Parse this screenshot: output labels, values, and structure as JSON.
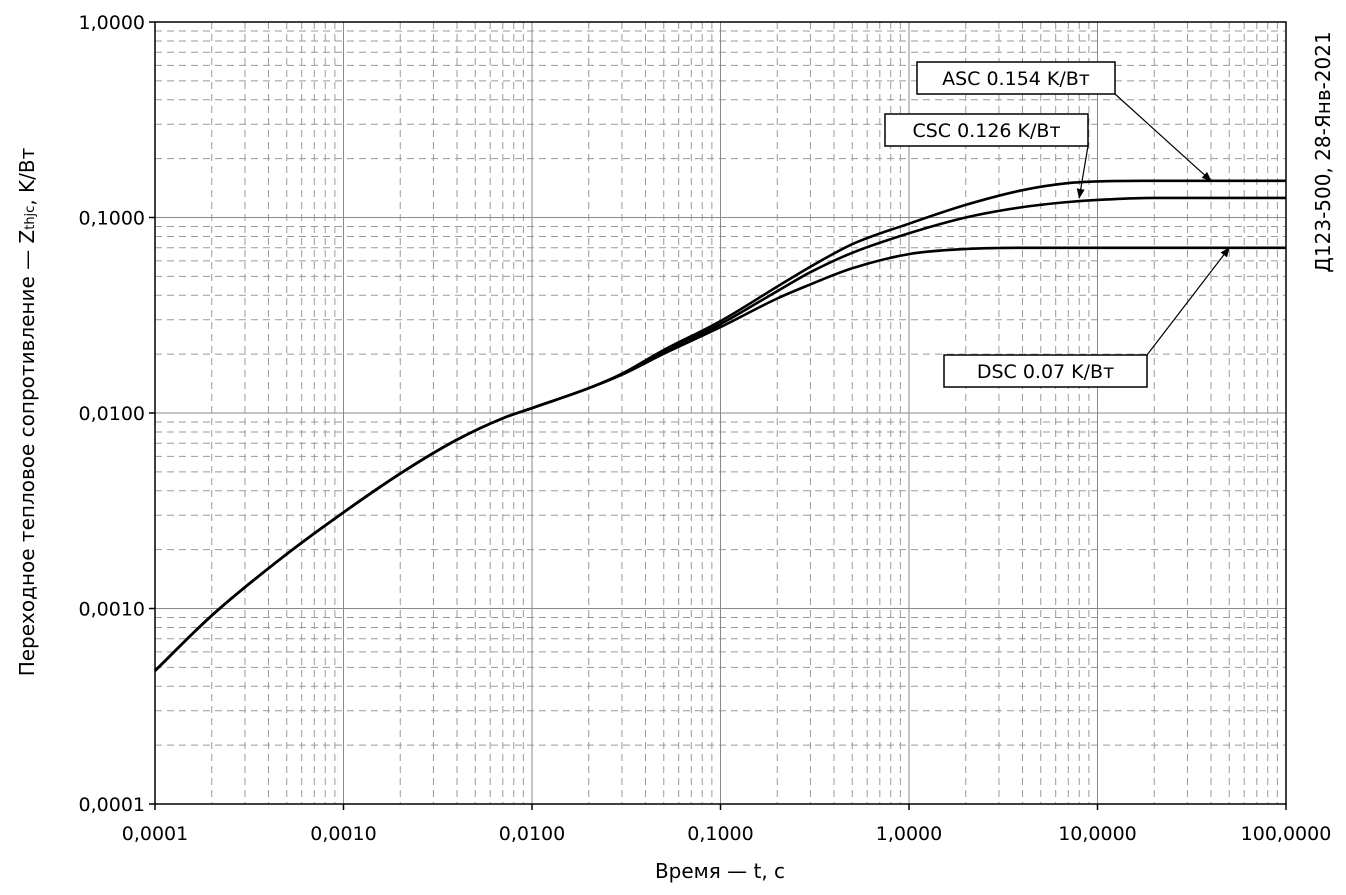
{
  "chart_data": {
    "type": "line",
    "xscale": "log",
    "yscale": "log",
    "xlim": [
      0.0001,
      100
    ],
    "ylim": [
      0.0001,
      1
    ],
    "grid": true,
    "xlabel": "Время — t, c",
    "ylabel_main": "Переходное тепловое сопротивление — Z",
    "ylabel_sub": "thjc",
    "ylabel_tail": ", K/Вт",
    "side_note": "Д123-500, 28-Янв-2021",
    "x_ticks": [
      "0,0001",
      "0,0010",
      "0,0100",
      "0,1000",
      "1,0000",
      "10,0000",
      "100,0000"
    ],
    "y_ticks": [
      "0,0001",
      "0,0010",
      "0,0100",
      "0,1000",
      "1,0000"
    ],
    "series": [
      {
        "name": "ASC 0.154 K/Вт",
        "x": [
          0.0001,
          0.0002,
          0.0005,
          0.001,
          0.002,
          0.004,
          0.007,
          0.01,
          0.02,
          0.03,
          0.05,
          0.1,
          0.2,
          0.3,
          0.5,
          1,
          2,
          4,
          7,
          10,
          20,
          50,
          100
        ],
        "values": [
          0.00048,
          0.00092,
          0.0019,
          0.0031,
          0.0049,
          0.0073,
          0.0094,
          0.0106,
          0.0134,
          0.0159,
          0.021,
          0.0295,
          0.0443,
          0.056,
          0.073,
          0.093,
          0.116,
          0.138,
          0.15,
          0.153,
          0.154,
          0.154,
          0.154
        ]
      },
      {
        "name": "CSC 0.126 K/Вт",
        "x": [
          0.0001,
          0.0002,
          0.0005,
          0.001,
          0.002,
          0.004,
          0.007,
          0.01,
          0.02,
          0.03,
          0.05,
          0.1,
          0.2,
          0.3,
          0.5,
          1,
          2,
          4,
          7,
          10,
          20,
          50,
          100
        ],
        "values": [
          0.00048,
          0.00092,
          0.0019,
          0.0031,
          0.0049,
          0.0073,
          0.0094,
          0.0106,
          0.0134,
          0.0158,
          0.0205,
          0.0285,
          0.042,
          0.0525,
          0.066,
          0.083,
          0.1,
          0.113,
          0.12,
          0.123,
          0.126,
          0.126,
          0.126
        ]
      },
      {
        "name": "DSC 0.07 K/Вт",
        "x": [
          0.0001,
          0.0002,
          0.0005,
          0.001,
          0.002,
          0.004,
          0.007,
          0.01,
          0.02,
          0.03,
          0.05,
          0.1,
          0.2,
          0.3,
          0.5,
          1,
          2,
          4,
          10,
          100
        ],
        "values": [
          0.00048,
          0.00092,
          0.0019,
          0.0031,
          0.0049,
          0.0073,
          0.0094,
          0.0106,
          0.0134,
          0.0157,
          0.0201,
          0.0275,
          0.0385,
          0.0455,
          0.055,
          0.065,
          0.069,
          0.07,
          0.07,
          0.07
        ]
      }
    ],
    "callouts": [
      {
        "label": "ASC 0.154 K/Вт",
        "point_x": 40,
        "point_y": 0.154
      },
      {
        "label": "CSC 0.126 K/Вт",
        "point_x": 8,
        "point_y": 0.126
      },
      {
        "label": "DSC 0.07 K/Вт",
        "point_x": 50,
        "point_y": 0.07
      }
    ]
  }
}
